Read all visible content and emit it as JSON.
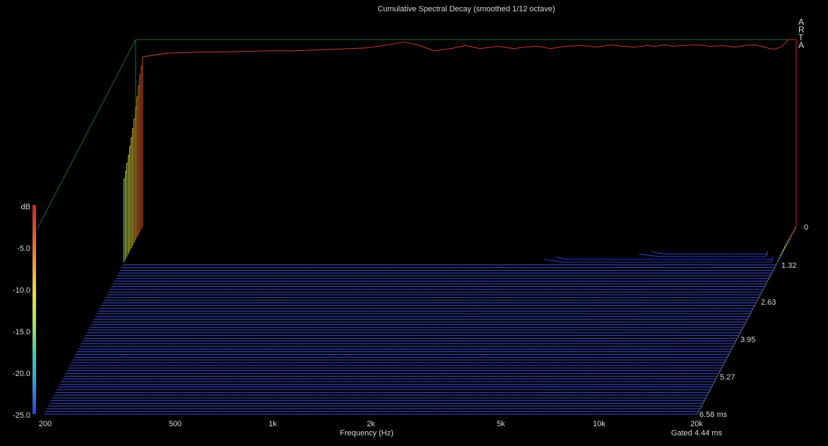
{
  "chart_data": {
    "type": "waterfall",
    "title": "Cumulative Spectral Decay (smoothed 1/12 octave)",
    "xlabel": "Frequency (Hz)",
    "zlabel": "dB",
    "x_scale": "log",
    "xlim": [
      200,
      20000
    ],
    "ylim": [
      -25.0,
      0
    ],
    "time_lim_ms": [
      0,
      6.58
    ],
    "x_tick_labels": [
      "200",
      "500",
      "1k",
      "2k",
      "5k",
      "10k",
      "20k"
    ],
    "x_tick_values": [
      200,
      500,
      1000,
      2000,
      5000,
      10000,
      20000
    ],
    "y_tick_labels": [
      "dB",
      "-5.0",
      "-10.0",
      "-15.0",
      "-20.0",
      "-25.0"
    ],
    "time_tick_labels": [
      "0",
      "1.32",
      "2.63",
      "3.95",
      "5.27",
      "6.58 ms"
    ],
    "gate_label": "Gated 4.44 ms",
    "brand": [
      "A",
      "R",
      "T",
      "A"
    ],
    "colormap": [
      "#2a3dd8",
      "#2f9be0",
      "#38d0b0",
      "#a6e060",
      "#e8e23a",
      "#f0a030",
      "#e05a28",
      "#c82828"
    ],
    "slice_count": 70,
    "frequencies_hz": [
      210,
      250,
      300,
      400,
      500,
      600,
      700,
      800,
      1000,
      1200,
      1300,
      1450,
      1600,
      1800,
      2000,
      2200,
      2500,
      2800,
      3000,
      3300,
      3600,
      4000,
      4500,
      5000,
      5500,
      6000,
      6500,
      7000,
      7500,
      8000,
      8500,
      9000,
      10000,
      11000,
      12000,
      13000,
      14000,
      15000,
      16000,
      17000,
      18000,
      19000,
      19500,
      20000
    ],
    "series": [
      {
        "time_ms": 0.0,
        "values_db": [
          -2.3,
          -1.8,
          -1.7,
          -1.6,
          -1.5,
          -1.5,
          -1.4,
          -1.3,
          -1.1,
          -0.6,
          -0.3,
          -0.8,
          -1.5,
          -1.2,
          -0.8,
          -1.2,
          -0.9,
          -1.2,
          -1.0,
          -0.9,
          -1.2,
          -0.9,
          -0.8,
          -1.0,
          -0.7,
          -0.9,
          -1.0,
          -0.8,
          -0.9,
          -0.7,
          -0.9,
          -0.8,
          -0.7,
          -0.9,
          -0.8,
          -1.0,
          -0.8,
          -0.7,
          -1.0,
          -1.3,
          -1.0,
          0.0,
          0.0,
          0.0
        ]
      },
      {
        "time_ms": 0.19,
        "values_db": [
          -4.0,
          -3.4,
          -3.2,
          -3.0,
          -2.8,
          -2.6,
          -2.5,
          -2.4,
          -2.2,
          -1.5,
          -1.3,
          -1.9,
          -2.5,
          -2.3,
          -2.0,
          -2.5,
          -2.3,
          -2.6,
          -2.5,
          -2.4,
          -2.8,
          -2.5,
          -2.6,
          -2.8,
          -2.6,
          -2.7,
          -2.8,
          -2.7,
          -2.8,
          -2.6,
          -2.7,
          -2.7,
          -2.6,
          -2.9,
          -2.8,
          -3.1,
          -2.9,
          -2.8,
          -3.2,
          -3.6,
          -3.2,
          -1.0,
          -0.5,
          -0.5
        ]
      },
      {
        "time_ms": 0.38,
        "values_db": [
          -6.2,
          -5.5,
          -5.2,
          -4.9,
          -4.6,
          -4.3,
          -4.1,
          -3.9,
          -3.5,
          -2.9,
          -2.8,
          -3.4,
          -4.2,
          -4.3,
          -4.0,
          -4.5,
          -4.4,
          -4.8,
          -4.7,
          -4.8,
          -5.2,
          -5.0,
          -5.2,
          -5.6,
          -5.4,
          -5.6,
          -5.8,
          -5.7,
          -6.0,
          -5.8,
          -5.9,
          -6.0,
          -6.0,
          -6.4,
          -6.4,
          -6.8,
          -6.7,
          -6.8,
          -7.4,
          -8.0,
          -7.6,
          -4.0,
          -2.5,
          -2.2
        ]
      },
      {
        "time_ms": 0.57,
        "values_db": [
          -8.4,
          -7.6,
          -7.3,
          -6.9,
          -6.5,
          -6.1,
          -5.8,
          -5.5,
          -5.0,
          -4.3,
          -4.2,
          -5.0,
          -6.0,
          -6.6,
          -6.6,
          -7.3,
          -7.5,
          -8.0,
          -8.0,
          -8.3,
          -8.7,
          -8.6,
          -9.0,
          -9.5,
          -9.4,
          -9.8,
          -10.1,
          -10.3,
          -10.8,
          -10.8,
          -11.0,
          -11.3,
          -11.6,
          -12.0,
          -12.2,
          -12.7,
          -12.9,
          -13.2,
          -13.8,
          -14.2,
          -13.8,
          -9.0,
          -6.5,
          -6.0
        ]
      },
      {
        "time_ms": 0.76,
        "values_db": [
          -10.2,
          -9.4,
          -9.0,
          -8.5,
          -8.0,
          -7.6,
          -7.2,
          -6.8,
          -6.2,
          -5.5,
          -5.4,
          -6.4,
          -7.9,
          -9.1,
          -9.6,
          -10.6,
          -11.3,
          -12.1,
          -12.4,
          -13.0,
          -13.6,
          -13.8,
          -14.5,
          -15.2,
          -15.4,
          -16.0,
          -16.5,
          -17.0,
          -17.8,
          -18.0,
          -18.5,
          -19.0,
          -19.6,
          -20.2,
          -20.6,
          -21.2,
          -21.6,
          -22.0,
          -22.6,
          -23.0,
          -22.5,
          -16.0,
          -12.0,
          -11.0
        ]
      },
      {
        "time_ms": 0.95,
        "values_db": [
          -11.8,
          -11.0,
          -10.6,
          -10.0,
          -9.5,
          -9.0,
          -8.6,
          -8.1,
          -7.4,
          -6.6,
          -6.5,
          -7.8,
          -9.8,
          -11.6,
          -12.5,
          -13.9,
          -15.1,
          -16.3,
          -16.8,
          -17.7,
          -18.5,
          -19.0,
          -20.0,
          -21.0,
          -21.5,
          -22.3,
          -23.0,
          -23.6,
          -24.3,
          -24.6,
          -24.9,
          -25.0,
          -25.0,
          -25.0,
          -25.0,
          -25.0,
          -25.0,
          -25.0,
          -25.0,
          -25.0,
          -25.0,
          -22.0,
          -18.0,
          -17.0
        ]
      },
      {
        "time_ms": 1.14,
        "values_db": [
          -13.2,
          -12.4,
          -12.0,
          -11.4,
          -10.8,
          -10.3,
          -9.8,
          -9.3,
          -8.5,
          -7.6,
          -7.6,
          -9.2,
          -11.8,
          -14.2,
          -15.5,
          -17.3,
          -19.0,
          -20.6,
          -21.4,
          -22.6,
          -23.6,
          -24.3,
          -25.0,
          -25.0,
          -25.0,
          -25.0,
          -25.0,
          -25.0,
          -25.0,
          -25.0,
          -25.0,
          -25.0,
          -25.0,
          -25.0,
          -25.0,
          -25.0,
          -25.0,
          -25.0,
          -25.0,
          -25.0,
          -25.0,
          -25.0,
          -24.0,
          -23.0
        ]
      },
      {
        "time_ms": 1.32,
        "values_db": [
          -14.5,
          -13.6,
          -13.2,
          -12.6,
          -12.0,
          -11.4,
          -10.9,
          -10.3,
          -9.5,
          -8.6,
          -8.6,
          -10.6,
          -13.8,
          -16.8,
          -18.6,
          -20.8,
          -22.8,
          -24.6,
          -25.0,
          -25.0,
          -25.0,
          -25.0,
          -25.0,
          -25.0,
          -25.0,
          -25.0,
          -25.0,
          -25.0,
          -25.0,
          -25.0,
          -25.0,
          -25.0,
          -25.0,
          -25.0,
          -25.0,
          -25.0,
          -25.0,
          -25.0,
          -25.0,
          -25.0,
          -25.0,
          -25.0,
          -25.0,
          -25.0
        ]
      }
    ]
  }
}
